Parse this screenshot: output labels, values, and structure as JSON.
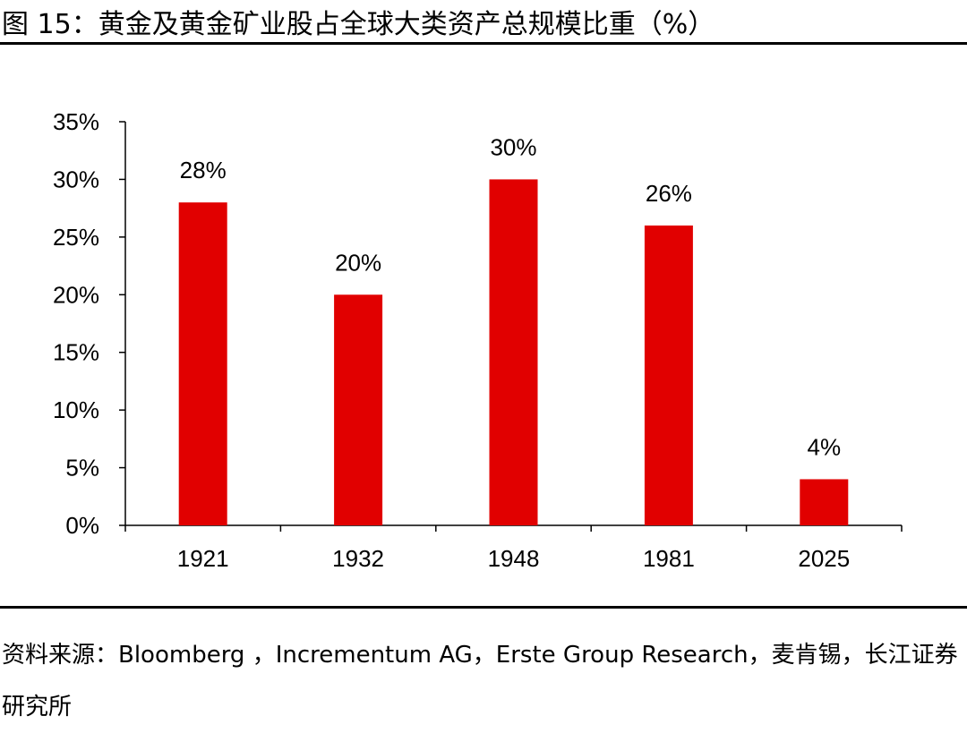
{
  "figure": {
    "title": "图 15：黄金及黄金矿业股占全球大类资产总规模比重（%）",
    "source": "资料来源：Bloomberg ，Incrementum AG，Erste Group Research，麦肯锡，长江证券研究所"
  },
  "chart_data": {
    "type": "bar",
    "categories": [
      "1921",
      "1932",
      "1948",
      "1981",
      "2025"
    ],
    "values": [
      28,
      20,
      30,
      26,
      4
    ],
    "data_labels": [
      "28%",
      "20%",
      "30%",
      "26%",
      "4%"
    ],
    "title": "",
    "xlabel": "",
    "ylabel": "",
    "ylim": [
      0,
      35
    ],
    "yticks": [
      0,
      5,
      10,
      15,
      20,
      25,
      30,
      35
    ],
    "ytick_labels": [
      "0%",
      "5%",
      "10%",
      "15%",
      "20%",
      "25%",
      "30%",
      "35%"
    ],
    "grid": false,
    "legend": "none",
    "bar_color": "#E10000"
  }
}
